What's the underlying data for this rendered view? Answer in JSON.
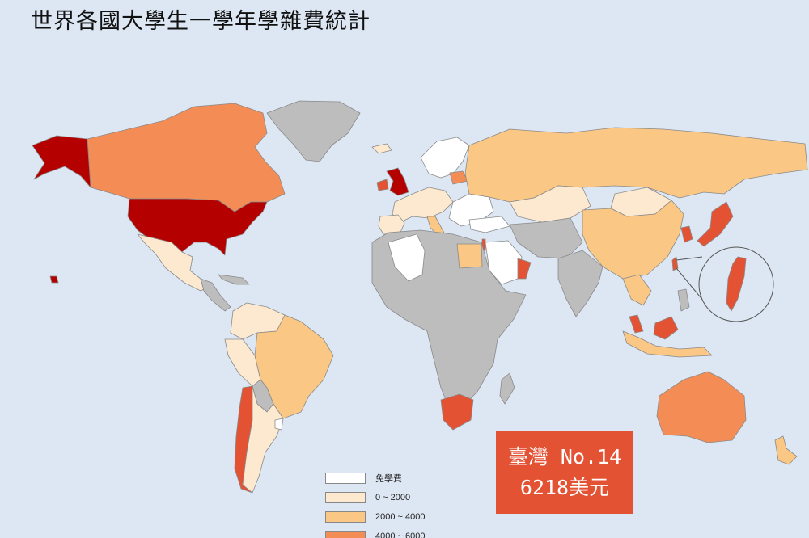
{
  "title": "世界各國大學生一學年學雜費統計",
  "callout": {
    "line1": "臺灣 No.14",
    "line2": "6218美元",
    "color": "#e45234"
  },
  "legend": [
    {
      "label": "免學費",
      "color": "#ffffff"
    },
    {
      "label": "0 ~ 2000",
      "color": "#fde9cf"
    },
    {
      "label": "2000 ~ 4000",
      "color": "#fbc784"
    },
    {
      "label": "4000 ~ 6000",
      "color": "#f48d55"
    }
  ],
  "colors": {
    "ocean": "#dde7f3",
    "no_data": "#bdbdbd",
    "free": "#ffffff",
    "tier1": "#fde9cf",
    "tier2": "#fbc784",
    "tier3": "#f48d55",
    "tier4": "#e45234",
    "tier5": "#b50000"
  }
}
